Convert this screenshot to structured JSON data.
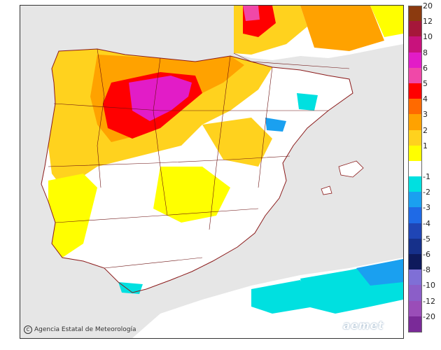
{
  "credit": {
    "text": "Agencia Estatal de Meteorología",
    "icon": "copyright-icon"
  },
  "logo": {
    "text": "aemet"
  },
  "legend": {
    "bins": [
      {
        "label": "20",
        "color": "#8b3a0f"
      },
      {
        "label": "12",
        "color": "#a5173a"
      },
      {
        "label": "10",
        "color": "#c8127c"
      },
      {
        "label": "8",
        "color": "#e21cc7"
      },
      {
        "label": "6",
        "color": "#f048a8"
      },
      {
        "label": "5",
        "color": "#ff0000"
      },
      {
        "label": "4",
        "color": "#ff6a00"
      },
      {
        "label": "3",
        "color": "#ffa200"
      },
      {
        "label": "2",
        "color": "#ffd21e"
      },
      {
        "label": "1",
        "color": "#ffff00"
      },
      {
        "label": "",
        "color": "#ffffff"
      },
      {
        "label": "-1",
        "color": "#00e0e0"
      },
      {
        "label": "-2",
        "color": "#1aa0f0"
      },
      {
        "label": "-3",
        "color": "#1f6ae6"
      },
      {
        "label": "-4",
        "color": "#1f45b5"
      },
      {
        "label": "-5",
        "color": "#16308a"
      },
      {
        "label": "-6",
        "color": "#0e1a5c"
      },
      {
        "label": "-8",
        "color": "#7f6fd6"
      },
      {
        "label": "-10",
        "color": "#8b5ec8"
      },
      {
        "label": "-12",
        "color": "#9a4db8"
      },
      {
        "label": "-20",
        "color": "#7a2a98"
      }
    ]
  }
}
